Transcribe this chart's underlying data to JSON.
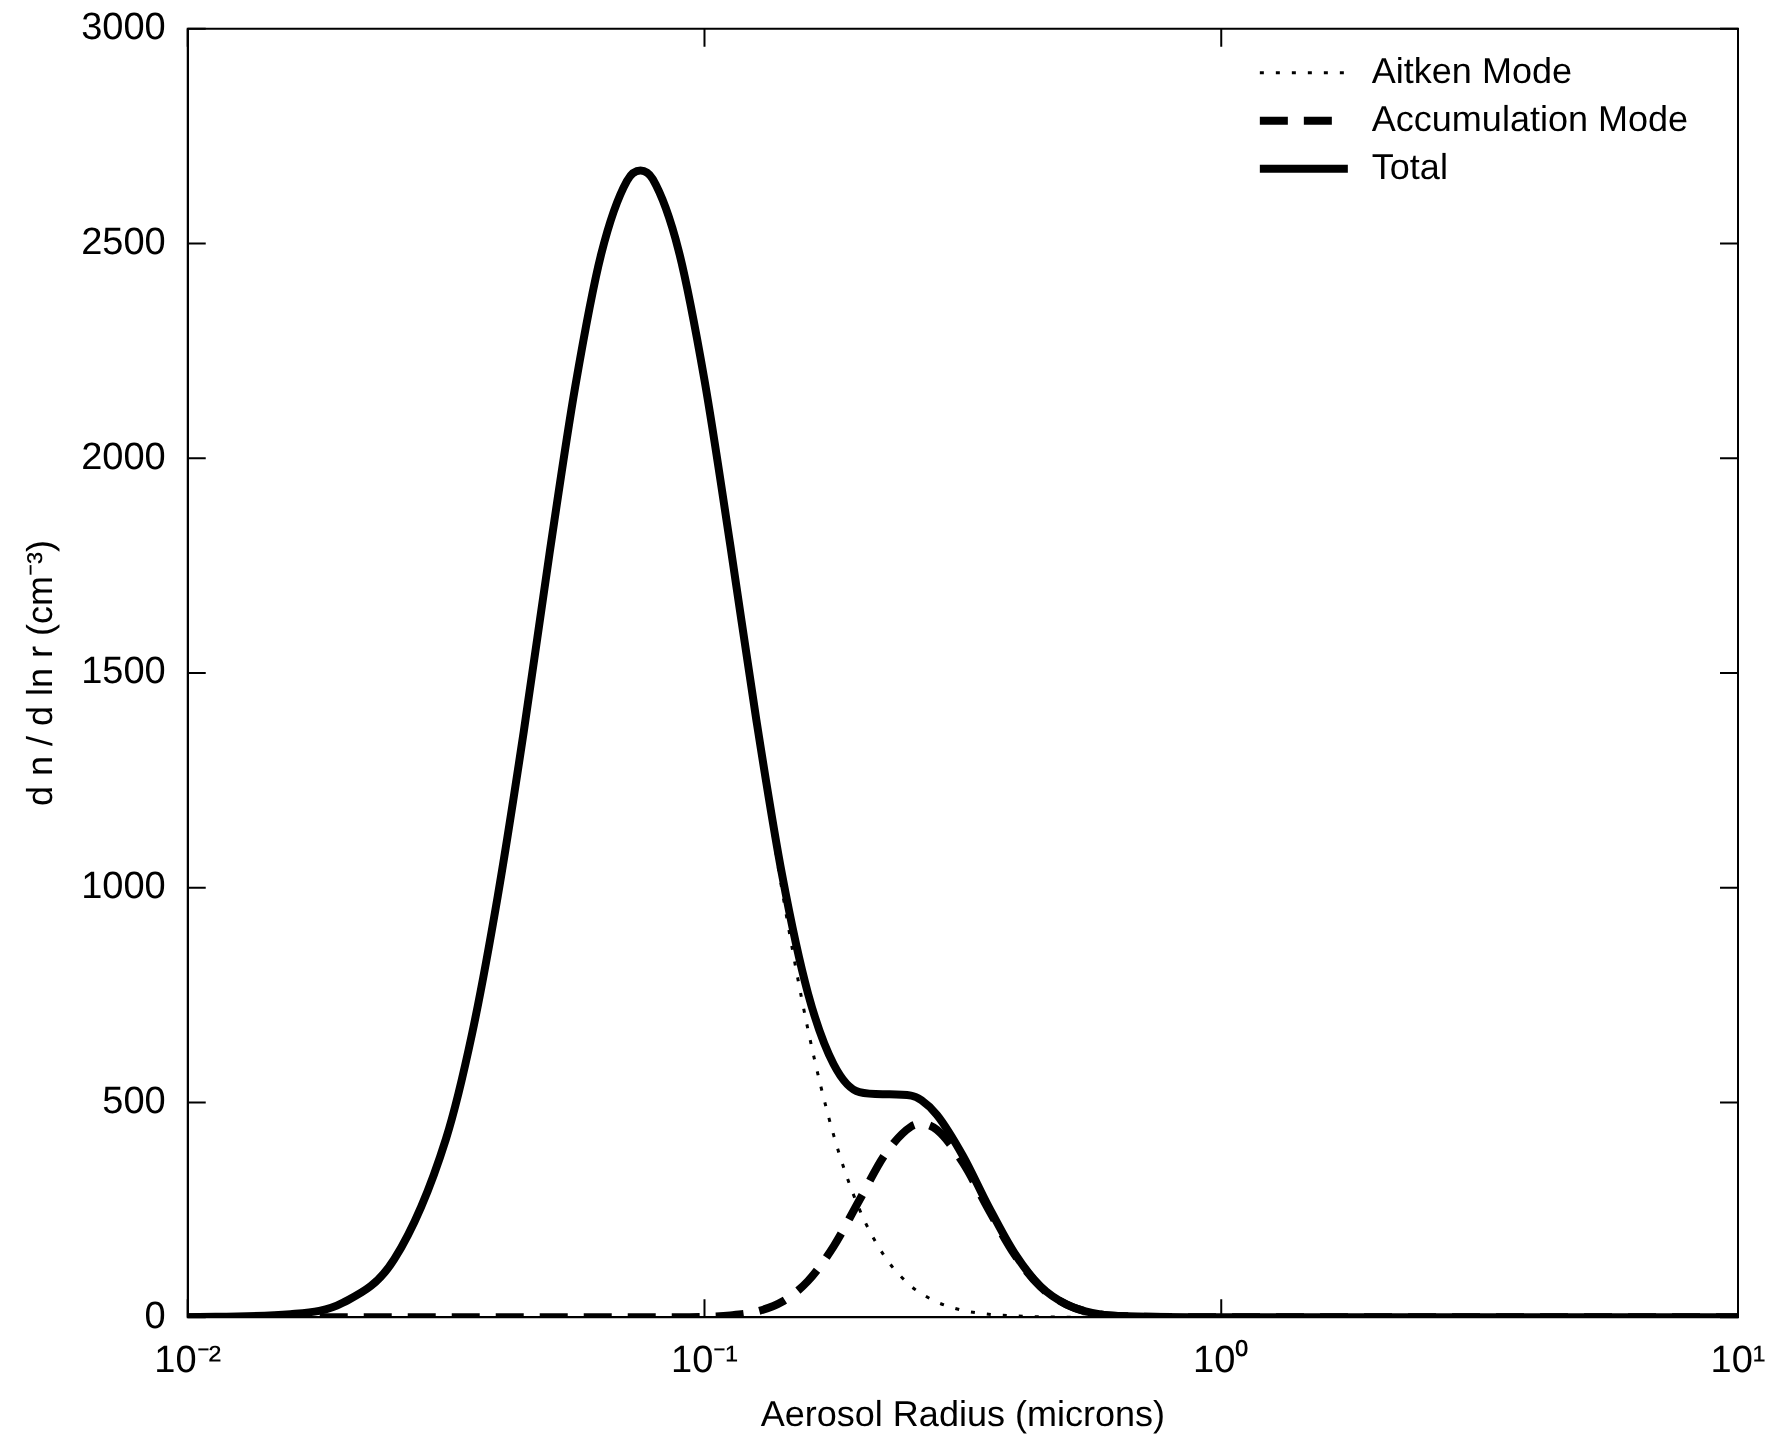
{
  "chart_data": {
    "type": "line",
    "xlabel": "Aerosol Radius (microns)",
    "ylabel": "d n / d ln r (cm⁻³)",
    "log": "x",
    "x": [
      0.01,
      0.0158,
      0.02,
      0.0251,
      0.0316,
      0.0355,
      0.0398,
      0.0447,
      0.0501,
      0.0562,
      0.0631,
      0.0708,
      0.0752,
      0.0794,
      0.0891,
      0.1,
      0.1122,
      0.1259,
      0.1413,
      0.1585,
      0.1778,
      0.1995,
      0.2239,
      0.2512,
      0.263,
      0.2818,
      0.3162,
      0.3548,
      0.3981,
      0.4467,
      0.5012,
      0.5623,
      0.631,
      1,
      3.162,
      10
    ],
    "series": [
      {
        "name": "Aitken Mode",
        "color": "#000000",
        "line_style": "dotted",
        "values": [
          null,
          null,
          null,
          null,
          null,
          null,
          null,
          null,
          null,
          null,
          null,
          null,
          null,
          null,
          null,
          null,
          null,
          1380,
          994,
          671,
          424,
          251,
          139,
          72,
          55,
          35,
          16,
          7,
          3,
          1,
          0,
          0,
          0,
          0,
          0,
          0
        ]
      },
      {
        "name": "Accumulation Mode",
        "color": "#000000",
        "line_style": "dashed",
        "values": [
          0,
          0,
          0,
          0,
          0,
          0,
          0,
          0,
          0,
          0,
          0,
          0,
          0,
          0,
          0,
          1,
          4,
          13,
          36,
          84,
          165,
          273,
          380,
          444,
          450,
          436,
          360,
          250,
          146,
          71,
          30,
          10,
          3,
          0,
          0,
          0
        ]
      },
      {
        "name": "Total",
        "color": "#000000",
        "line_style": "solid",
        "values": [
          0,
          7,
          34,
          135,
          415,
          660,
          980,
          1364,
          1776,
          2166,
          2475,
          2646,
          2670,
          2650,
          2484,
          2182,
          1797,
          1393,
          1030,
          755,
          589,
          524,
          519,
          516,
          505,
          471,
          376,
          257,
          149,
          72,
          30,
          10,
          3,
          0,
          0,
          0
        ]
      }
    ],
    "xlim": [
      0.01,
      10
    ],
    "xticks": [
      {
        "value": 0.01,
        "label": "10⁻²"
      },
      {
        "value": 0.1,
        "label": "10⁻¹"
      },
      {
        "value": 1,
        "label": "10⁰"
      },
      {
        "value": 10,
        "label": "10¹"
      }
    ],
    "ylim": [
      0,
      3000
    ],
    "yticks": [
      0,
      500,
      1000,
      1500,
      2000,
      2500,
      3000
    ],
    "legend": "top right",
    "marker": "none"
  }
}
